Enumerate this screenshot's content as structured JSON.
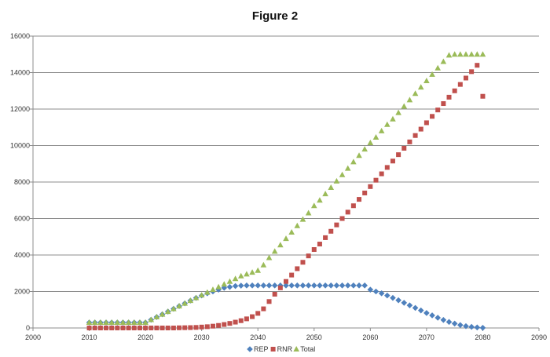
{
  "chart_data": {
    "type": "scatter",
    "title": "Figure 2",
    "xlabel": "",
    "ylabel": "",
    "xlim": [
      2000,
      2090
    ],
    "ylim": [
      0,
      16000
    ],
    "xticks": [
      2000,
      2010,
      2020,
      2030,
      2040,
      2050,
      2060,
      2070,
      2080,
      2090
    ],
    "yticks": [
      0,
      2000,
      4000,
      6000,
      8000,
      10000,
      12000,
      14000,
      16000
    ],
    "grid": "horizontal",
    "legend_position": "bottom",
    "series": [
      {
        "name": "REP",
        "color": "#4f81bd",
        "marker": "diamond",
        "x": [
          2010,
          2011,
          2012,
          2013,
          2014,
          2015,
          2016,
          2017,
          2018,
          2019,
          2020,
          2021,
          2022,
          2023,
          2024,
          2025,
          2026,
          2027,
          2028,
          2029,
          2030,
          2031,
          2032,
          2033,
          2034,
          2035,
          2036,
          2037,
          2038,
          2039,
          2040,
          2041,
          2042,
          2043,
          2044,
          2045,
          2046,
          2047,
          2048,
          2049,
          2050,
          2051,
          2052,
          2053,
          2054,
          2055,
          2056,
          2057,
          2058,
          2059,
          2060,
          2061,
          2062,
          2063,
          2064,
          2065,
          2066,
          2067,
          2068,
          2069,
          2070,
          2071,
          2072,
          2073,
          2074,
          2075,
          2076,
          2077,
          2078,
          2079,
          2080
        ],
        "y": [
          300,
          300,
          300,
          300,
          300,
          300,
          300,
          300,
          300,
          300,
          300,
          450,
          600,
          750,
          900,
          1050,
          1200,
          1350,
          1500,
          1650,
          1780,
          1900,
          2000,
          2100,
          2200,
          2250,
          2300,
          2320,
          2330,
          2330,
          2330,
          2330,
          2330,
          2330,
          2330,
          2330,
          2330,
          2330,
          2330,
          2330,
          2330,
          2330,
          2330,
          2330,
          2330,
          2330,
          2330,
          2330,
          2330,
          2330,
          2100,
          2000,
          1900,
          1780,
          1650,
          1520,
          1380,
          1240,
          1100,
          960,
          820,
          690,
          560,
          440,
          330,
          240,
          160,
          100,
          60,
          30,
          10
        ]
      },
      {
        "name": "RNR",
        "color": "#c0504d",
        "marker": "square",
        "x": [
          2010,
          2011,
          2012,
          2013,
          2014,
          2015,
          2016,
          2017,
          2018,
          2019,
          2020,
          2021,
          2022,
          2023,
          2024,
          2025,
          2026,
          2027,
          2028,
          2029,
          2030,
          2031,
          2032,
          2033,
          2034,
          2035,
          2036,
          2037,
          2038,
          2039,
          2040,
          2041,
          2042,
          2043,
          2044,
          2045,
          2046,
          2047,
          2048,
          2049,
          2050,
          2051,
          2052,
          2053,
          2054,
          2055,
          2056,
          2057,
          2058,
          2059,
          2060,
          2061,
          2062,
          2063,
          2064,
          2065,
          2066,
          2067,
          2068,
          2069,
          2070,
          2071,
          2072,
          2073,
          2074,
          2075,
          2076,
          2077,
          2078,
          2079,
          2080
        ],
        "y": [
          0,
          0,
          0,
          0,
          0,
          0,
          0,
          0,
          0,
          0,
          0,
          0,
          0,
          0,
          0,
          0,
          10,
          15,
          20,
          30,
          50,
          70,
          100,
          140,
          190,
          250,
          320,
          400,
          500,
          620,
          800,
          1050,
          1450,
          1850,
          2200,
          2550,
          2900,
          3250,
          3600,
          3950,
          4300,
          4600,
          4950,
          5300,
          5650,
          6000,
          6350,
          6700,
          7050,
          7400,
          7750,
          8100,
          8450,
          8800,
          9150,
          9500,
          9850,
          10200,
          10550,
          10900,
          11250,
          11600,
          11950,
          12300,
          12650,
          13000,
          13350,
          13700,
          14050,
          14400,
          12700
        ]
      },
      {
        "name": "Total",
        "color": "#9bbb59",
        "marker": "triangle",
        "x": [
          2010,
          2011,
          2012,
          2013,
          2014,
          2015,
          2016,
          2017,
          2018,
          2019,
          2020,
          2021,
          2022,
          2023,
          2024,
          2025,
          2026,
          2027,
          2028,
          2029,
          2030,
          2031,
          2032,
          2033,
          2034,
          2035,
          2036,
          2037,
          2038,
          2039,
          2040,
          2041,
          2042,
          2043,
          2044,
          2045,
          2046,
          2047,
          2048,
          2049,
          2050,
          2051,
          2052,
          2053,
          2054,
          2055,
          2056,
          2057,
          2058,
          2059,
          2060,
          2061,
          2062,
          2063,
          2064,
          2065,
          2066,
          2067,
          2068,
          2069,
          2070,
          2071,
          2072,
          2073,
          2074,
          2075,
          2076,
          2077,
          2078,
          2079,
          2080
        ],
        "y": [
          300,
          300,
          300,
          300,
          300,
          300,
          300,
          300,
          300,
          300,
          300,
          450,
          600,
          750,
          900,
          1050,
          1200,
          1350,
          1500,
          1650,
          1800,
          1950,
          2100,
          2250,
          2400,
          2550,
          2700,
          2850,
          2950,
          3050,
          3150,
          3450,
          3850,
          4200,
          4550,
          4900,
          5250,
          5600,
          5950,
          6300,
          6700,
          7000,
          7350,
          7700,
          8050,
          8400,
          8750,
          9100,
          9450,
          9800,
          10150,
          10450,
          10800,
          11150,
          11450,
          11800,
          12150,
          12500,
          12850,
          13200,
          13550,
          13900,
          14250,
          14600,
          14950,
          15000,
          15000,
          15000,
          15000,
          15000,
          15000
        ]
      }
    ]
  }
}
